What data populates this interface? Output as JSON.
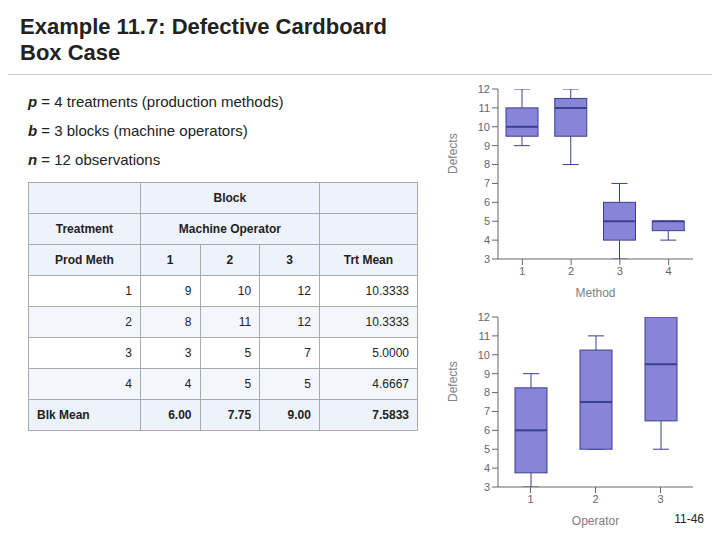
{
  "title": "Example 11.7: Defective Cardboard",
  "subtitle": "Box Case",
  "annotations": [
    "p = 4 treatments (production methods)",
    "b = 3 blocks (machine operators)",
    "n = 12 observations"
  ],
  "slide_number": "11-46",
  "table": {
    "group_header": "Block",
    "row_header": "Treatment",
    "subgroup_header": "Machine Operator",
    "columns": [
      "Prod Meth",
      "1",
      "2",
      "3",
      "Trt Mean"
    ],
    "rows": [
      [
        "1",
        "9",
        "10",
        "12",
        "10.3333"
      ],
      [
        "2",
        "8",
        "11",
        "12",
        "10.3333"
      ],
      [
        "3",
        "3",
        "5",
        "7",
        "5.0000"
      ],
      [
        "4",
        "4",
        "5",
        "5",
        "4.6667"
      ]
    ],
    "footer": [
      "Blk Mean",
      "6.00",
      "7.75",
      "9.00",
      "7.5833"
    ]
  },
  "chart_data": [
    {
      "type": "box",
      "xlabel": "Method",
      "ylabel": "Defects",
      "categories": [
        "1",
        "2",
        "3",
        "4"
      ],
      "boxes": [
        {
          "min": 9,
          "q1": 9.5,
          "median": 10,
          "q3": 11,
          "max": 12
        },
        {
          "min": 8,
          "q1": 9.5,
          "median": 11,
          "q3": 11.5,
          "max": 12
        },
        {
          "min": 3,
          "q1": 4,
          "median": 5,
          "q3": 6,
          "max": 7
        },
        {
          "min": 4,
          "q1": 4.5,
          "median": 5,
          "q3": 5,
          "max": 5
        }
      ],
      "ylim": [
        3,
        12
      ],
      "yticks": [
        3,
        4,
        5,
        6,
        7,
        8,
        9,
        10,
        11,
        12
      ]
    },
    {
      "type": "box",
      "xlabel": "Operator",
      "ylabel": "Defects",
      "categories": [
        "1",
        "2",
        "3"
      ],
      "boxes": [
        {
          "min": 3,
          "q1": 3.75,
          "median": 6,
          "q3": 8.25,
          "max": 9
        },
        {
          "min": 5,
          "q1": 5,
          "median": 7.5,
          "q3": 10.25,
          "max": 11
        },
        {
          "min": 5,
          "q1": 6.5,
          "median": 9.5,
          "q3": 12,
          "max": 12
        }
      ],
      "ylim": [
        3,
        12
      ],
      "yticks": [
        3,
        4,
        5,
        6,
        7,
        8,
        9,
        10,
        11,
        12
      ]
    }
  ]
}
